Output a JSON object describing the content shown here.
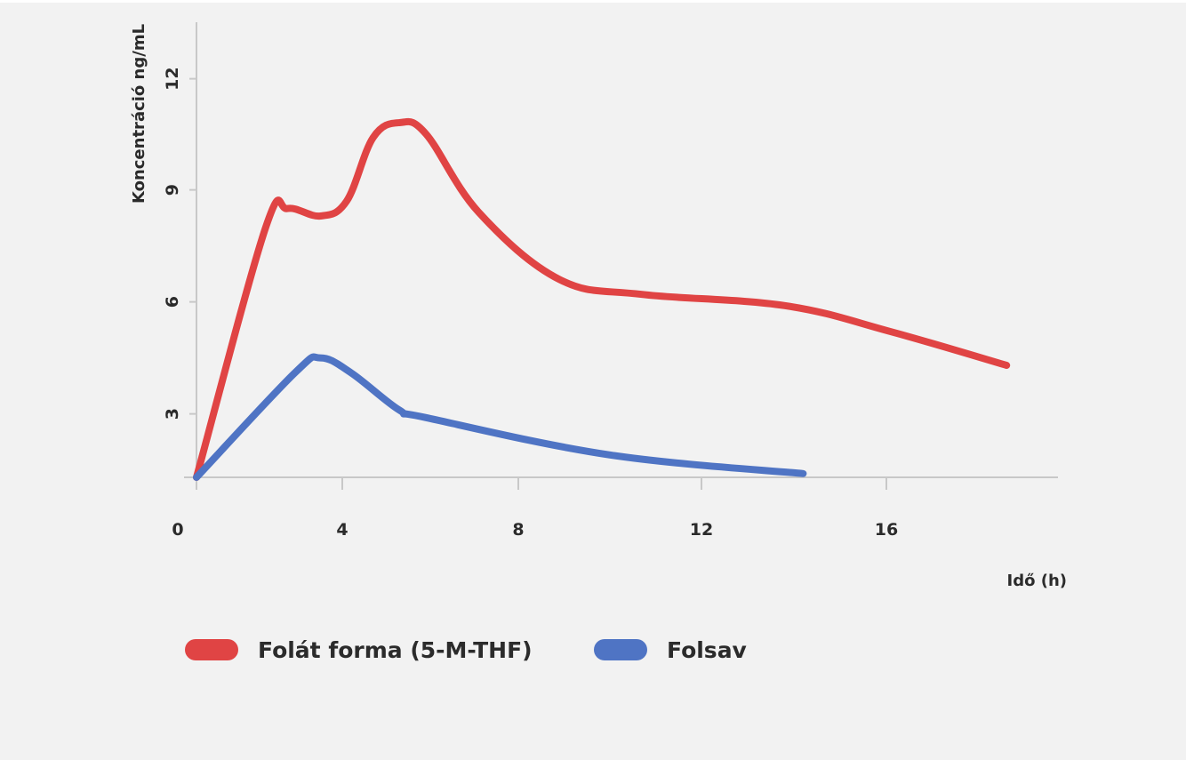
{
  "chart_data": {
    "type": "line",
    "title": "",
    "xlabel": "Idő (h)",
    "ylabel": "Koncentráció ng/mL",
    "x_ticks": [
      0,
      4,
      8,
      12,
      16
    ],
    "y_ticks": [
      3,
      6,
      9,
      12
    ],
    "ylim": [
      1.3,
      13.5
    ],
    "grid": false,
    "legend_position": "bottom-left",
    "series": [
      {
        "name": "Folát forma (5-M-THF)",
        "color": "#e04444",
        "x": [
          0,
          1.9,
          2.5,
          3.4,
          4.1,
          4.7,
          5.3,
          5.9,
          7.1,
          8.9,
          10.7,
          13.8,
          16.1,
          18.6
        ],
        "y": [
          1.3,
          8.0,
          8.5,
          8.3,
          8.7,
          10.4,
          10.8,
          10.5,
          8.4,
          6.6,
          6.2,
          5.9,
          5.2,
          4.3
        ]
      },
      {
        "name": "Folsav",
        "color": "#4f74c4",
        "x": [
          0,
          2.7,
          3.4,
          4.2,
          5.3,
          5.9,
          10.0,
          14.2
        ],
        "y": [
          1.3,
          4.1,
          4.5,
          4.1,
          3.1,
          2.9,
          1.9,
          1.4
        ]
      }
    ]
  }
}
